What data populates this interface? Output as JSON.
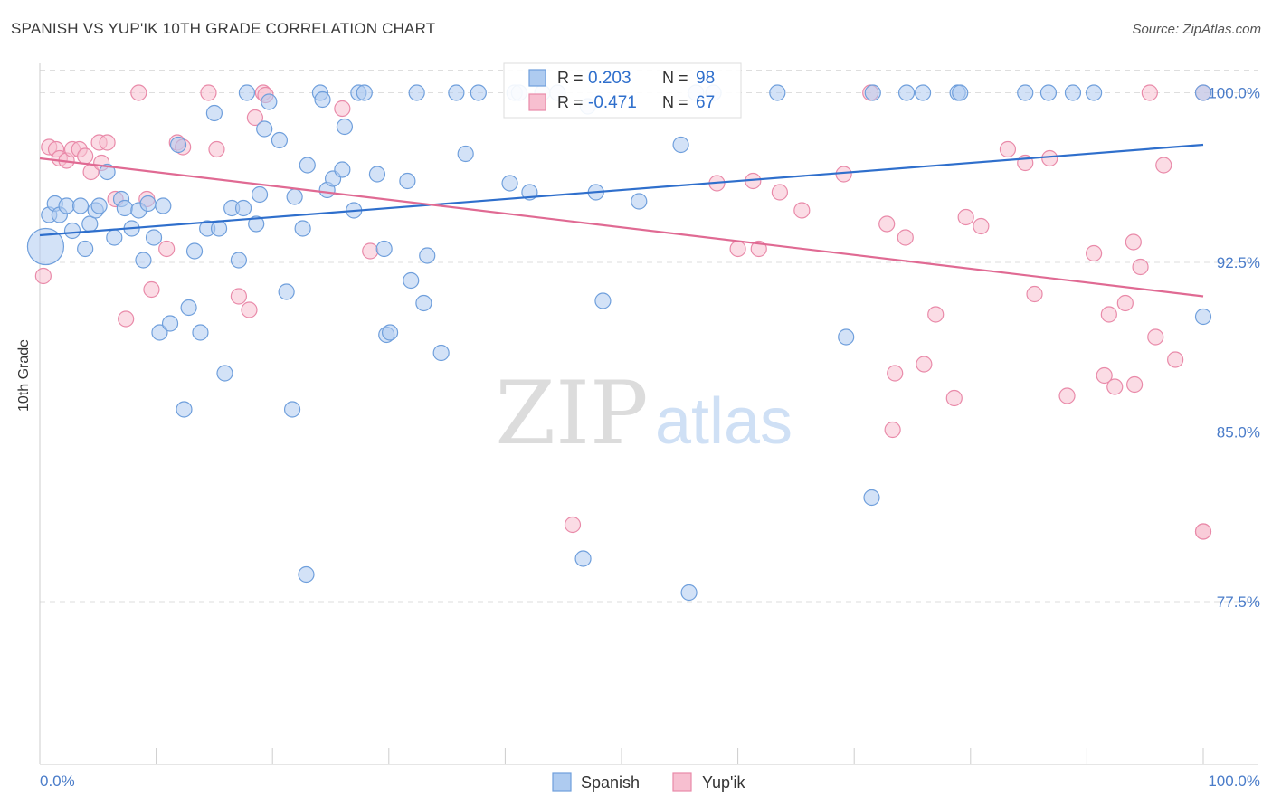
{
  "title": "SPANISH VS YUP'IK 10TH GRADE CORRELATION CHART",
  "source": "Source: ZipAtlas.com",
  "watermark": {
    "zip": "ZIP",
    "atlas": "atlas"
  },
  "colors": {
    "blue_fill": "#aecbf0",
    "blue_stroke": "#6f9fdc",
    "blue_line": "#2f6fcc",
    "pink_fill": "#f7bfd0",
    "pink_stroke": "#e98aa9",
    "pink_line": "#e06a93",
    "value_text": "#2f6fcc",
    "grid": "#dedede",
    "axis_tick_label": "#4a7cc9"
  },
  "legend_box": [
    {
      "r_label": "R =",
      "r_value": "0.203",
      "n_label": "N =",
      "n_value": "98",
      "color": "blue"
    },
    {
      "r_label": "R =",
      "r_value": "-0.471",
      "n_label": "N =",
      "n_value": "67",
      "color": "pink"
    }
  ],
  "chart_data": {
    "type": "scatter",
    "title": "SPANISH VS YUP'IK 10TH GRADE CORRELATION CHART",
    "xlabel": "",
    "ylabel": "10th Grade",
    "xlim": [
      0,
      100
    ],
    "ylim": [
      70.3,
      101.3
    ],
    "x_tick_labels": [
      "0.0%",
      "100.0%"
    ],
    "y_ticks": [
      77.5,
      85.0,
      92.5,
      100.0
    ],
    "y_tick_labels": [
      "77.5%",
      "85.0%",
      "92.5%",
      "100.0%"
    ],
    "grid": true,
    "legend_placement": "bottom-center",
    "series": [
      {
        "name": "Spanish",
        "color": "#6f9fdc",
        "trend": {
          "x": [
            0,
            100
          ],
          "y": [
            93.7,
            97.7
          ]
        },
        "points": [
          [
            0.5,
            93.2
          ],
          [
            0.8,
            94.6
          ],
          [
            1.3,
            95.1
          ],
          [
            1.7,
            94.6
          ],
          [
            2.3,
            95.0
          ],
          [
            2.8,
            93.9
          ],
          [
            3.5,
            95.0
          ],
          [
            3.9,
            93.1
          ],
          [
            4.3,
            94.2
          ],
          [
            4.8,
            94.8
          ],
          [
            5.1,
            95.0
          ],
          [
            5.8,
            96.5
          ],
          [
            6.4,
            93.6
          ],
          [
            7.0,
            95.3
          ],
          [
            7.3,
            94.9
          ],
          [
            7.9,
            94.0
          ],
          [
            8.5,
            94.8
          ],
          [
            8.9,
            92.6
          ],
          [
            9.3,
            95.1
          ],
          [
            9.8,
            93.6
          ],
          [
            10.3,
            89.4
          ],
          [
            10.6,
            95.0
          ],
          [
            11.2,
            89.8
          ],
          [
            11.9,
            97.7
          ],
          [
            12.4,
            86.0
          ],
          [
            12.8,
            90.5
          ],
          [
            13.3,
            93.0
          ],
          [
            13.8,
            89.4
          ],
          [
            14.4,
            94.0
          ],
          [
            15.0,
            99.1
          ],
          [
            15.4,
            94.0
          ],
          [
            15.9,
            87.6
          ],
          [
            16.5,
            94.9
          ],
          [
            17.1,
            92.6
          ],
          [
            17.5,
            94.9
          ],
          [
            17.8,
            100.0
          ],
          [
            18.6,
            94.2
          ],
          [
            18.9,
            95.5
          ],
          [
            19.3,
            98.4
          ],
          [
            19.7,
            99.6
          ],
          [
            20.6,
            97.9
          ],
          [
            21.2,
            91.2
          ],
          [
            21.7,
            86.0
          ],
          [
            21.9,
            95.4
          ],
          [
            22.6,
            94.0
          ],
          [
            22.9,
            78.7
          ],
          [
            23.0,
            96.8
          ],
          [
            24.1,
            100.0
          ],
          [
            24.3,
            99.7
          ],
          [
            24.7,
            95.7
          ],
          [
            25.2,
            96.2
          ],
          [
            26.0,
            96.6
          ],
          [
            26.2,
            98.5
          ],
          [
            27.0,
            94.8
          ],
          [
            27.4,
            100.0
          ],
          [
            27.9,
            100.0
          ],
          [
            29.0,
            96.4
          ],
          [
            29.6,
            93.1
          ],
          [
            29.8,
            89.3
          ],
          [
            30.1,
            89.4
          ],
          [
            31.6,
            96.1
          ],
          [
            31.9,
            91.7
          ],
          [
            32.4,
            100.0
          ],
          [
            33.0,
            90.7
          ],
          [
            33.3,
            92.8
          ],
          [
            34.5,
            88.5
          ],
          [
            35.8,
            100.0
          ],
          [
            36.6,
            97.3
          ],
          [
            37.7,
            100.0
          ],
          [
            40.4,
            96.0
          ],
          [
            40.8,
            100.0
          ],
          [
            41.2,
            100.0
          ],
          [
            42.1,
            95.6
          ],
          [
            43.2,
            100.0
          ],
          [
            44.5,
            100.0
          ],
          [
            46.7,
            79.4
          ],
          [
            47.1,
            99.4
          ],
          [
            47.8,
            95.6
          ],
          [
            48.4,
            90.8
          ],
          [
            51.5,
            95.2
          ],
          [
            55.1,
            97.7
          ],
          [
            55.8,
            77.9
          ],
          [
            56.4,
            100.0
          ],
          [
            57.9,
            100.0
          ],
          [
            63.4,
            100.0
          ],
          [
            69.3,
            89.2
          ],
          [
            71.5,
            82.1
          ],
          [
            71.6,
            100.0
          ],
          [
            74.5,
            100.0
          ],
          [
            75.9,
            100.0
          ],
          [
            78.9,
            100.0
          ],
          [
            79.1,
            100.0
          ],
          [
            84.7,
            100.0
          ],
          [
            86.7,
            100.0
          ],
          [
            88.8,
            100.0
          ],
          [
            90.6,
            100.0
          ],
          [
            100.0,
            90.1
          ],
          [
            100.0,
            100.0
          ]
        ],
        "large_point_index": 0
      },
      {
        "name": "Yup'ik",
        "color": "#e98aa9",
        "trend": {
          "x": [
            0,
            100
          ],
          "y": [
            97.1,
            91.0
          ]
        },
        "points": [
          [
            0.3,
            91.9
          ],
          [
            0.8,
            97.6
          ],
          [
            1.4,
            97.5
          ],
          [
            1.7,
            97.1
          ],
          [
            2.3,
            97.0
          ],
          [
            2.8,
            97.5
          ],
          [
            3.4,
            97.5
          ],
          [
            3.9,
            97.2
          ],
          [
            4.4,
            96.5
          ],
          [
            5.1,
            97.8
          ],
          [
            5.3,
            96.9
          ],
          [
            5.8,
            97.8
          ],
          [
            6.5,
            95.3
          ],
          [
            7.4,
            90.0
          ],
          [
            8.5,
            100.0
          ],
          [
            9.2,
            95.3
          ],
          [
            9.6,
            91.3
          ],
          [
            10.9,
            93.1
          ],
          [
            11.8,
            97.8
          ],
          [
            12.3,
            97.6
          ],
          [
            14.5,
            100.0
          ],
          [
            15.2,
            97.5
          ],
          [
            17.1,
            91.0
          ],
          [
            18.0,
            90.4
          ],
          [
            18.5,
            98.9
          ],
          [
            19.2,
            100.0
          ],
          [
            19.4,
            99.9
          ],
          [
            26.0,
            99.3
          ],
          [
            28.4,
            93.0
          ],
          [
            45.8,
            80.9
          ],
          [
            58.2,
            96.0
          ],
          [
            60.0,
            93.1
          ],
          [
            61.3,
            96.1
          ],
          [
            61.8,
            93.1
          ],
          [
            63.6,
            95.6
          ],
          [
            65.5,
            94.8
          ],
          [
            69.1,
            96.4
          ],
          [
            71.4,
            100.0
          ],
          [
            72.8,
            94.2
          ],
          [
            73.3,
            85.1
          ],
          [
            73.5,
            87.6
          ],
          [
            74.4,
            93.6
          ],
          [
            76.0,
            88.0
          ],
          [
            77.0,
            90.2
          ],
          [
            78.6,
            86.5
          ],
          [
            79.6,
            94.5
          ],
          [
            80.9,
            94.1
          ],
          [
            83.2,
            97.5
          ],
          [
            84.7,
            96.9
          ],
          [
            85.5,
            91.1
          ],
          [
            86.8,
            97.1
          ],
          [
            88.3,
            86.6
          ],
          [
            90.6,
            92.9
          ],
          [
            91.5,
            87.5
          ],
          [
            91.9,
            90.2
          ],
          [
            92.4,
            87.0
          ],
          [
            93.3,
            90.7
          ],
          [
            94.0,
            93.4
          ],
          [
            94.1,
            87.1
          ],
          [
            94.6,
            92.3
          ],
          [
            95.4,
            100.0
          ],
          [
            95.9,
            89.2
          ],
          [
            96.6,
            96.8
          ],
          [
            97.6,
            88.2
          ],
          [
            100.0,
            80.6
          ],
          [
            100.0,
            80.6
          ],
          [
            100.0,
            100.0
          ]
        ]
      }
    ]
  }
}
